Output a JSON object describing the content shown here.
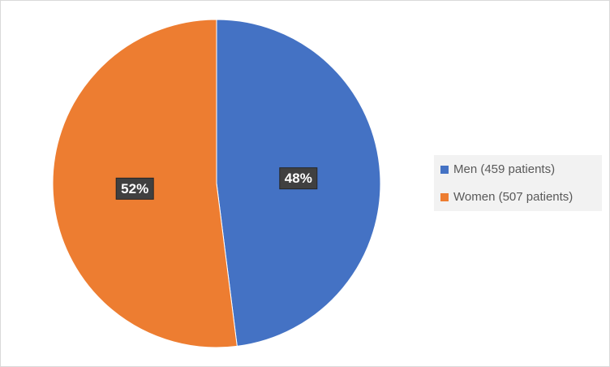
{
  "chart_data": {
    "type": "pie",
    "categories": [
      "Men (459 patients)",
      "Women (507 patients)"
    ],
    "values": [
      48,
      52
    ],
    "value_labels": [
      "48%",
      "52%"
    ],
    "colors": [
      "#4472c4",
      "#ed7d31"
    ],
    "legend": "right"
  }
}
